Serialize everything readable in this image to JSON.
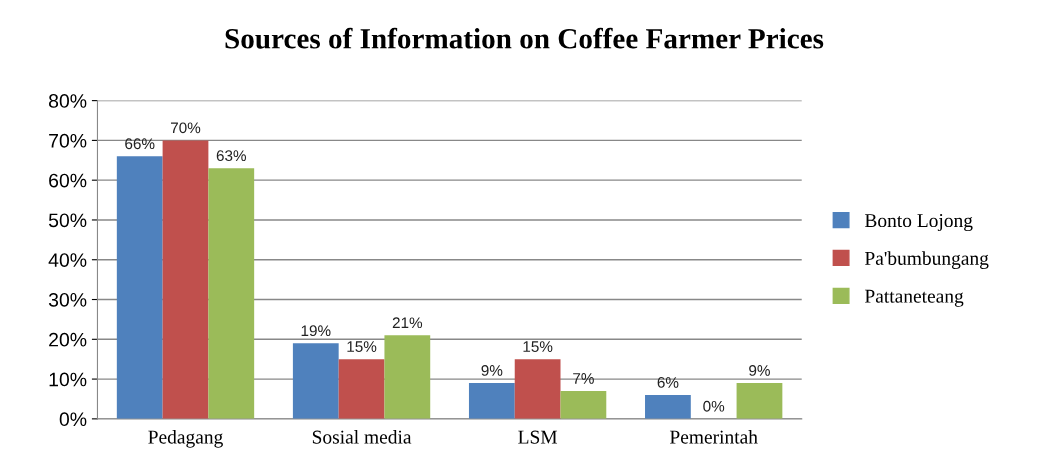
{
  "chart_data": {
    "type": "bar",
    "title": "Sources of Information on Coffee Farmer Prices",
    "categories": [
      "Pedagang",
      "Sosial media",
      "LSM",
      "Pemerintah"
    ],
    "series": [
      {
        "name": "Bonto Lojong",
        "color": "#4f81bd",
        "values": [
          66,
          19,
          9,
          6
        ],
        "value_labels": [
          "66%",
          "19%",
          "9%",
          "6%"
        ]
      },
      {
        "name": "Pa'bumbungang",
        "color": "#c0504d",
        "values": [
          70,
          15,
          15,
          0
        ],
        "value_labels": [
          "70%",
          "15%",
          "15%",
          "0%"
        ]
      },
      {
        "name": "Pattaneteang",
        "color": "#9bbb59",
        "values": [
          63,
          21,
          7,
          9
        ],
        "value_labels": [
          "63%",
          "21%",
          "7%",
          "9%"
        ]
      }
    ],
    "ylim": [
      0,
      80
    ],
    "yticks": [
      {
        "value": 0,
        "label": "0%"
      },
      {
        "value": 10,
        "label": "10%"
      },
      {
        "value": 20,
        "label": "20%"
      },
      {
        "value": 30,
        "label": "30%"
      },
      {
        "value": 40,
        "label": "40%"
      },
      {
        "value": 50,
        "label": "50%"
      },
      {
        "value": 60,
        "label": "60%"
      },
      {
        "value": 70,
        "label": "70%"
      },
      {
        "value": 80,
        "label": "80%"
      }
    ],
    "grid": "y",
    "legend": "right"
  }
}
